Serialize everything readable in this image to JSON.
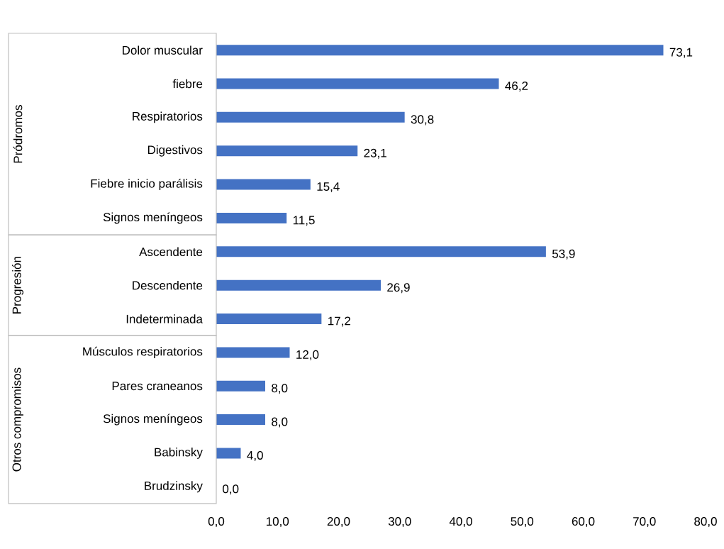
{
  "chart_data": [
    {
      "type": "bar",
      "orientation": "horizontal",
      "color": "#4472c4",
      "ylabel": "Pródromos",
      "tick_labels": "y",
      "categories": [
        "Dolor muscular",
        "fiebre",
        "Respiratorios",
        "Digestivos",
        "Fiebre inicio parálisis",
        "Signos meníngeos"
      ],
      "values": [
        73.1,
        46.2,
        30.8,
        23.1,
        15.4,
        11.5
      ],
      "value_labels": [
        "73,1",
        "46,2",
        "30,8",
        "23,1",
        "15,4",
        "11,5"
      ],
      "xlim": [
        0,
        80
      ]
    },
    {
      "type": "bar",
      "orientation": "horizontal",
      "color": "#4472c4",
      "ylabel": "Progresión",
      "tick_labels": "y",
      "categories": [
        "Ascendente",
        "Descendente",
        "Indeterminada"
      ],
      "values": [
        53.9,
        26.9,
        17.2
      ],
      "value_labels": [
        "53,9",
        "26,9",
        "17,2"
      ],
      "xlim": [
        0,
        80
      ]
    },
    {
      "type": "bar",
      "orientation": "horizontal",
      "color": "#4472c4",
      "ylabel": "Otros compromisos",
      "categories": [
        "Músculos respiratorios",
        "Pares craneanos",
        "Signos meníngeos",
        "Babinsky",
        "Brudzinsky"
      ],
      "values": [
        12.0,
        8.0,
        8.0,
        4.0,
        0.0
      ],
      "value_labels": [
        "12,0",
        "8,0",
        "8,0",
        "4,0",
        "0,0"
      ],
      "xlim": [
        0,
        80
      ],
      "xticks": [
        {
          "value": 0,
          "label": "0,0"
        },
        {
          "value": 10,
          "label": "10,0"
        },
        {
          "value": 20,
          "label": "20,0"
        },
        {
          "value": 30,
          "label": "30,0"
        },
        {
          "value": 40,
          "label": "40,0"
        },
        {
          "value": 50,
          "label": "50,0"
        },
        {
          "value": 60,
          "label": "60,0"
        },
        {
          "value": 70,
          "label": "70,0"
        },
        {
          "value": 80,
          "label": "80,0"
        }
      ]
    }
  ]
}
